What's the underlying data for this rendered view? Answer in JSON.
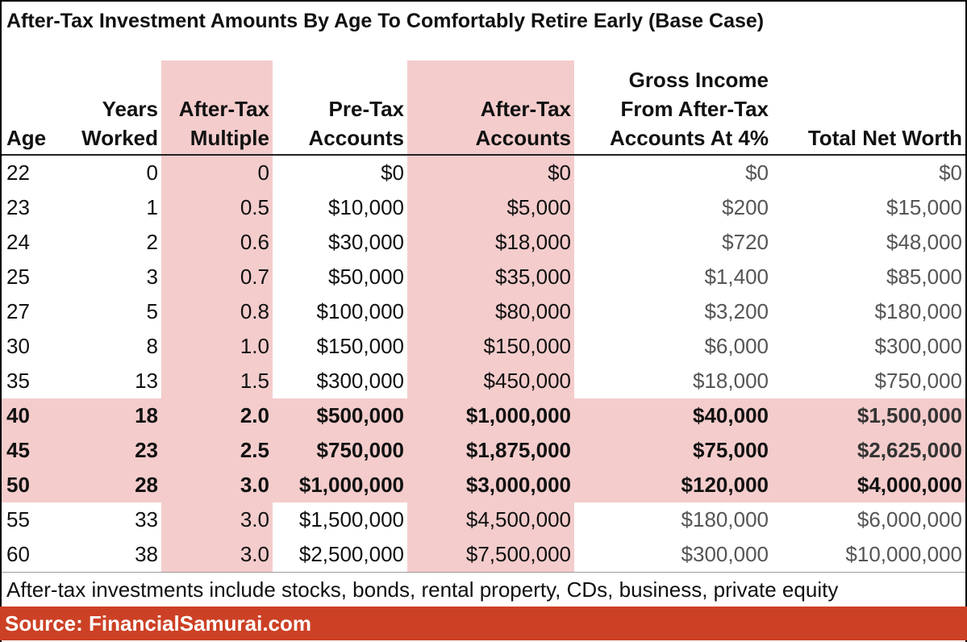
{
  "header": {
    "title": "After-Tax Investment Amounts By Age To Comfortably Retire Early (Base Case)"
  },
  "table": {
    "columns": [
      [
        "Age"
      ],
      [
        "Years",
        "Worked"
      ],
      [
        "After-Tax",
        "Multiple"
      ],
      [
        "Pre-Tax",
        "Accounts"
      ],
      [
        "After-Tax",
        "Accounts"
      ],
      [
        "Gross Income",
        "From After-Tax",
        "Accounts At 4%"
      ],
      [
        "Total Net Worth"
      ]
    ],
    "rows": [
      [
        "22",
        "0",
        "0",
        "$0",
        "$0",
        "$0",
        "$0"
      ],
      [
        "23",
        "1",
        "0.5",
        "$10,000",
        "$5,000",
        "$200",
        "$15,000"
      ],
      [
        "24",
        "2",
        "0.6",
        "$30,000",
        "$18,000",
        "$720",
        "$48,000"
      ],
      [
        "25",
        "3",
        "0.7",
        "$50,000",
        "$35,000",
        "$1,400",
        "$85,000"
      ],
      [
        "27",
        "5",
        "0.8",
        "$100,000",
        "$80,000",
        "$3,200",
        "$180,000"
      ],
      [
        "30",
        "8",
        "1.0",
        "$150,000",
        "$150,000",
        "$6,000",
        "$300,000"
      ],
      [
        "35",
        "13",
        "1.5",
        "$300,000",
        "$450,000",
        "$18,000",
        "$750,000"
      ],
      [
        "40",
        "18",
        "2.0",
        "$500,000",
        "$1,000,000",
        "$40,000",
        "$1,500,000"
      ],
      [
        "45",
        "23",
        "2.5",
        "$750,000",
        "$1,875,000",
        "$75,000",
        "$2,625,000"
      ],
      [
        "50",
        "28",
        "3.0",
        "$1,000,000",
        "$3,000,000",
        "$120,000",
        "$4,000,000"
      ],
      [
        "55",
        "33",
        "3.0",
        "$1,500,000",
        "$4,500,000",
        "$180,000",
        "$6,000,000"
      ],
      [
        "60",
        "38",
        "3.0",
        "$2,500,000",
        "$7,500,000",
        "$300,000",
        "$10,000,000"
      ]
    ],
    "note": "After-tax investments include stocks, bonds, rental property, CDs, business, private equity"
  },
  "footer": {
    "source": "Source: FinancialSamurai.com"
  }
}
